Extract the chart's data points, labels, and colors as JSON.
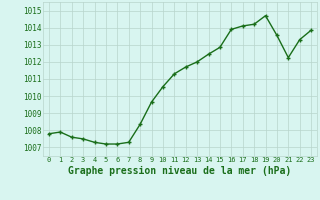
{
  "x": [
    0,
    1,
    2,
    3,
    4,
    5,
    6,
    7,
    8,
    9,
    10,
    11,
    12,
    13,
    14,
    15,
    16,
    17,
    18,
    19,
    20,
    21,
    22,
    23
  ],
  "y": [
    1007.8,
    1007.9,
    1007.6,
    1007.5,
    1007.3,
    1007.2,
    1007.2,
    1007.3,
    1008.35,
    1009.65,
    1010.55,
    1011.3,
    1011.7,
    1012.0,
    1012.45,
    1012.85,
    1013.9,
    1014.1,
    1014.2,
    1014.7,
    1013.55,
    1012.25,
    1013.3,
    1013.85
  ],
  "line_color": "#1a6e1a",
  "marker": "+",
  "marker_size": 3.5,
  "line_width": 1.0,
  "bg_color": "#d8f5f0",
  "grid_color": "#b8d4cc",
  "xlabel": "Graphe pression niveau de la mer (hPa)",
  "xlabel_fontsize": 7,
  "xlabel_color": "#1a6e1a",
  "yticks": [
    1007,
    1008,
    1009,
    1010,
    1011,
    1012,
    1013,
    1014,
    1015
  ],
  "ylim": [
    1006.5,
    1015.5
  ],
  "xlim": [
    -0.5,
    23.5
  ],
  "ytick_fontsize": 5.5,
  "xtick_fontsize": 5.0,
  "tick_color": "#1a6e1a"
}
